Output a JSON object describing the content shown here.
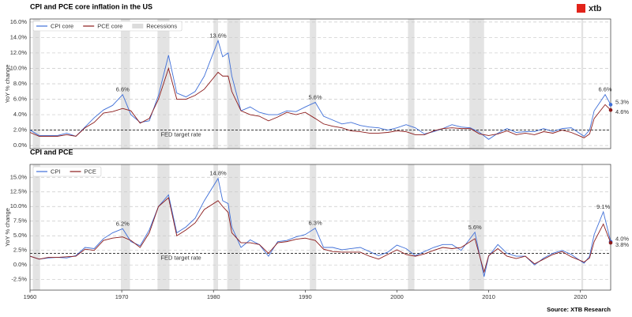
{
  "chart_data": [
    {
      "type": "line",
      "title": "CPI and PCE core inflation in the US",
      "y_label": "YoY % change",
      "x": [
        1960,
        1961,
        1962,
        1963,
        1964,
        1965,
        1966,
        1967,
        1968,
        1969,
        1970.1,
        1971,
        1972,
        1973,
        1974,
        1975.1,
        1976,
        1977,
        1978,
        1979,
        1980.5,
        1981,
        1981.6,
        1982,
        1983,
        1984,
        1985,
        1986,
        1987,
        1988,
        1989,
        1990,
        1991.1,
        1992,
        1993,
        1994,
        1995,
        1996,
        1997,
        1998,
        1999,
        2000,
        2001,
        2002,
        2003,
        2004,
        2005,
        2006,
        2007,
        2008,
        2009,
        2010,
        2011,
        2012,
        2013,
        2014,
        2015,
        2016,
        2017,
        2018,
        2019,
        2020.4,
        2021,
        2021.5,
        2022.7,
        2023.3
      ],
      "series": [
        {
          "name": "CPI core",
          "color": "#3f6fd8",
          "values": [
            2.0,
            1.3,
            1.3,
            1.3,
            1.6,
            1.2,
            2.4,
            3.6,
            4.6,
            5.2,
            6.6,
            4.0,
            3.0,
            3.2,
            6.5,
            11.7,
            6.8,
            6.3,
            7.0,
            9.0,
            13.6,
            11.5,
            12.0,
            9.0,
            4.5,
            5.0,
            4.3,
            4.0,
            4.0,
            4.5,
            4.4,
            5.0,
            5.6,
            3.8,
            3.3,
            2.8,
            3.0,
            2.6,
            2.4,
            2.3,
            2.0,
            2.3,
            2.7,
            2.3,
            1.5,
            1.8,
            2.2,
            2.7,
            2.4,
            2.3,
            1.7,
            0.8,
            1.6,
            2.2,
            1.7,
            1.8,
            1.8,
            2.2,
            1.8,
            2.2,
            2.3,
            1.2,
            2.0,
            4.5,
            6.6,
            5.3
          ]
        },
        {
          "name": "PCE core",
          "color": "#8b1a1a",
          "values": [
            1.7,
            1.2,
            1.2,
            1.2,
            1.4,
            1.2,
            2.3,
            3.0,
            4.2,
            4.4,
            4.8,
            4.5,
            2.9,
            3.5,
            6.0,
            10.0,
            6.0,
            6.0,
            6.5,
            7.3,
            9.5,
            9.0,
            9.0,
            7.0,
            4.5,
            4.0,
            3.8,
            3.2,
            3.7,
            4.3,
            4.0,
            4.3,
            3.5,
            2.8,
            2.5,
            2.3,
            1.9,
            1.8,
            1.6,
            1.6,
            1.7,
            1.9,
            1.8,
            1.4,
            1.4,
            1.9,
            2.2,
            2.3,
            2.2,
            2.2,
            1.5,
            1.3,
            1.5,
            1.9,
            1.4,
            1.6,
            1.4,
            1.8,
            1.6,
            2.0,
            1.7,
            1.0,
            1.5,
            3.5,
            5.3,
            4.6
          ]
        }
      ],
      "xlim": [
        1960,
        2023.3
      ],
      "ylim": [
        -0.4,
        16.4
      ],
      "yticks": [
        {
          "value": 0,
          "label": "0.0%"
        },
        {
          "value": 2,
          "label": "2.0%"
        },
        {
          "value": 4,
          "label": "4.0%"
        },
        {
          "value": 6,
          "label": "6.0%"
        },
        {
          "value": 8,
          "label": "8.0%"
        },
        {
          "value": 10,
          "label": "10.0%"
        },
        {
          "value": 12,
          "label": "12.0%"
        },
        {
          "value": 14,
          "label": "14.0%"
        },
        {
          "value": 16,
          "label": "16.0%"
        }
      ],
      "grid": true,
      "recession_label": "Recessions",
      "recessions": [
        [
          1960.3,
          1961.1
        ],
        [
          1969.9,
          1970.9
        ],
        [
          1973.9,
          1975.2
        ],
        [
          1980.0,
          1980.5
        ],
        [
          1981.5,
          1982.9
        ],
        [
          1990.5,
          1991.2
        ],
        [
          2001.2,
          2001.9
        ],
        [
          2007.9,
          2009.5
        ],
        [
          2020.1,
          2020.3
        ]
      ],
      "reference_line": {
        "value": 2,
        "label": "FED target rate"
      },
      "annotations": [
        {
          "x": 1970.1,
          "value": 6.6,
          "label": "6.6%"
        },
        {
          "x": 1980.5,
          "value": 13.6,
          "label": "13.6%"
        },
        {
          "x": 1991.1,
          "value": 5.6,
          "label": "5.6%"
        },
        {
          "x": 2022.7,
          "value": 6.6,
          "label": "6.6%"
        },
        {
          "x": 2023.3,
          "value": 5.3,
          "label": "5.3%"
        },
        {
          "x": 2023.3,
          "value": 4.6,
          "label": "4.6%"
        }
      ]
    },
    {
      "type": "line",
      "title": "CPI and PCE",
      "y_label": "YoY % change",
      "x": [
        1960,
        1961,
        1962,
        1963,
        1964,
        1965,
        1966,
        1967,
        1968,
        1969,
        1970.1,
        1971,
        1972,
        1973,
        1974,
        1975.1,
        1976,
        1977,
        1978,
        1979,
        1980.5,
        1981,
        1981.6,
        1982,
        1983,
        1984,
        1985,
        1986,
        1987,
        1988,
        1989,
        1990,
        1991.1,
        1992,
        1993,
        1994,
        1995,
        1996,
        1997,
        1998,
        1999,
        2000,
        2001,
        2002,
        2003,
        2004,
        2005,
        2006,
        2007,
        2008.5,
        2009.5,
        2010,
        2011,
        2012,
        2013,
        2014,
        2015,
        2016,
        2017,
        2018,
        2019,
        2020.4,
        2021,
        2021.5,
        2022.5,
        2023.3
      ],
      "series": [
        {
          "name": "CPI",
          "color": "#3f6fd8",
          "values": [
            1.5,
            1.0,
            1.2,
            1.3,
            1.2,
            1.6,
            3.0,
            2.8,
            4.5,
            5.5,
            6.2,
            4.0,
            3.3,
            6.0,
            10.0,
            12.0,
            5.5,
            6.5,
            8.0,
            11.0,
            14.8,
            11.0,
            10.5,
            6.5,
            3.0,
            4.3,
            3.5,
            1.5,
            4.0,
            4.2,
            4.8,
            5.2,
            6.3,
            3.0,
            3.0,
            2.6,
            2.8,
            3.0,
            2.3,
            1.6,
            2.2,
            3.4,
            2.8,
            1.6,
            2.3,
            3.0,
            3.5,
            3.5,
            2.5,
            5.6,
            -2.0,
            1.5,
            3.5,
            2.0,
            1.5,
            1.5,
            0.0,
            1.2,
            2.0,
            2.5,
            1.8,
            0.3,
            1.5,
            5.2,
            9.1,
            4.0
          ]
        },
        {
          "name": "PCE",
          "color": "#8b1a1a",
          "values": [
            1.5,
            1.0,
            1.3,
            1.3,
            1.4,
            1.5,
            2.7,
            2.5,
            4.2,
            4.6,
            4.8,
            4.2,
            3.0,
            5.5,
            10.0,
            11.5,
            5.0,
            6.0,
            7.2,
            9.5,
            11.0,
            10.0,
            9.0,
            5.5,
            3.8,
            3.8,
            3.5,
            2.0,
            3.8,
            4.0,
            4.4,
            4.6,
            4.2,
            2.7,
            2.3,
            2.2,
            2.2,
            2.2,
            1.5,
            1.0,
            1.8,
            2.6,
            1.8,
            1.5,
            1.9,
            2.5,
            3.0,
            2.8,
            3.0,
            4.5,
            -1.2,
            1.6,
            2.8,
            1.5,
            1.1,
            1.5,
            0.2,
            1.0,
            1.8,
            2.3,
            1.4,
            0.5,
            1.2,
            4.0,
            7.0,
            3.8
          ]
        }
      ],
      "xlim": [
        1960,
        2023.3
      ],
      "ylim": [
        -4.3,
        17.2
      ],
      "xticks": [
        1960,
        1970,
        1980,
        1990,
        2000,
        2010,
        2020
      ],
      "yticks": [
        {
          "value": -2.5,
          "label": "-2.5%"
        },
        {
          "value": 0,
          "label": "0.0%"
        },
        {
          "value": 2.5,
          "label": "2.5%"
        },
        {
          "value": 5,
          "label": "5.0%"
        },
        {
          "value": 7.5,
          "label": "7.5%"
        },
        {
          "value": 10,
          "label": "10.0%"
        },
        {
          "value": 12.5,
          "label": "12.5%"
        },
        {
          "value": 15,
          "label": "15.0%"
        }
      ],
      "grid": true,
      "recessions": [
        [
          1960.3,
          1961.1
        ],
        [
          1969.9,
          1970.9
        ],
        [
          1973.9,
          1975.2
        ],
        [
          1980.0,
          1980.5
        ],
        [
          1981.5,
          1982.9
        ],
        [
          1990.5,
          1991.2
        ],
        [
          2001.2,
          2001.9
        ],
        [
          2007.9,
          2009.5
        ],
        [
          2020.1,
          2020.3
        ]
      ],
      "reference_line": {
        "value": 2,
        "label": "FED target rate"
      },
      "annotations": [
        {
          "x": 1970.1,
          "value": 6.2,
          "label": "6.2%"
        },
        {
          "x": 1980.5,
          "value": 14.8,
          "label": "14.8%"
        },
        {
          "x": 1991.1,
          "value": 6.3,
          "label": "6.3%"
        },
        {
          "x": 2008.5,
          "value": 5.6,
          "label": "5.6%"
        },
        {
          "x": 2022.5,
          "value": 9.1,
          "label": "9.1%"
        },
        {
          "x": 2023.3,
          "value": 4.0,
          "label": "4.0%"
        },
        {
          "x": 2023.3,
          "value": 3.8,
          "label": "3.8%"
        }
      ]
    }
  ],
  "source": "Source: XTB Research",
  "logo": "xtb"
}
